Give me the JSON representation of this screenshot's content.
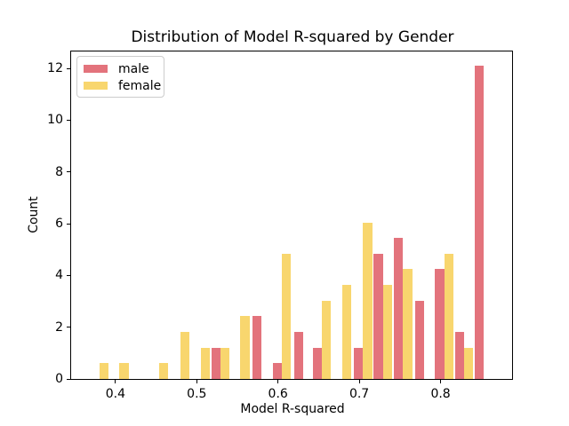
{
  "chart_data": {
    "type": "bar",
    "subtype": "histogram-dodged",
    "title": "Distribution of Model R-squared by Gender",
    "xlabel": "Model R-squared",
    "ylabel": "Count",
    "xlim": [
      0.3454,
      0.888
    ],
    "ylim": [
      0,
      12.65
    ],
    "xticks": [
      0.4,
      0.5,
      0.6,
      0.7,
      0.8
    ],
    "xtick_labels": [
      "0.4",
      "0.5",
      "0.6",
      "0.7",
      "0.8"
    ],
    "yticks": [
      0,
      2,
      4,
      6,
      8,
      10,
      12
    ],
    "ytick_labels": [
      "0",
      "2",
      "4",
      "6",
      "8",
      "10",
      "12"
    ],
    "bar_width": 0.01135,
    "grid": false,
    "legend_position": "upper-left",
    "series": [
      {
        "name": "male",
        "color": "#e3737c",
        "bars": [
          {
            "x": 0.5182,
            "h": 1.21
          },
          {
            "x": 0.5685,
            "h": 2.42
          },
          {
            "x": 0.5932,
            "h": 0.61
          },
          {
            "x": 0.6194,
            "h": 1.82
          },
          {
            "x": 0.6429,
            "h": 1.21
          },
          {
            "x": 0.6931,
            "h": 1.21
          },
          {
            "x": 0.7177,
            "h": 4.84
          },
          {
            "x": 0.7423,
            "h": 5.45
          },
          {
            "x": 0.7685,
            "h": 3.03
          },
          {
            "x": 0.793,
            "h": 4.24
          },
          {
            "x": 0.8176,
            "h": 1.82
          },
          {
            "x": 0.8416,
            "h": 12.1
          }
        ]
      },
      {
        "name": "female",
        "color": "#f8d66e",
        "bars": [
          {
            "x": 0.38,
            "h": 0.61
          },
          {
            "x": 0.4047,
            "h": 0.61
          },
          {
            "x": 0.4535,
            "h": 0.61
          },
          {
            "x": 0.48,
            "h": 1.82
          },
          {
            "x": 0.5048,
            "h": 1.21
          },
          {
            "x": 0.5292,
            "h": 1.21
          },
          {
            "x": 0.5536,
            "h": 2.42
          },
          {
            "x": 0.6045,
            "h": 4.84
          },
          {
            "x": 0.6533,
            "h": 3.03
          },
          {
            "x": 0.6789,
            "h": 3.63
          },
          {
            "x": 0.7046,
            "h": 6.05
          },
          {
            "x": 0.7292,
            "h": 3.63
          },
          {
            "x": 0.7537,
            "h": 4.24
          },
          {
            "x": 0.8045,
            "h": 4.84
          },
          {
            "x": 0.829,
            "h": 1.21
          }
        ]
      }
    ],
    "legend_entries": [
      {
        "label": "male",
        "color": "#e3737c"
      },
      {
        "label": "female",
        "color": "#f8d66e"
      }
    ]
  }
}
